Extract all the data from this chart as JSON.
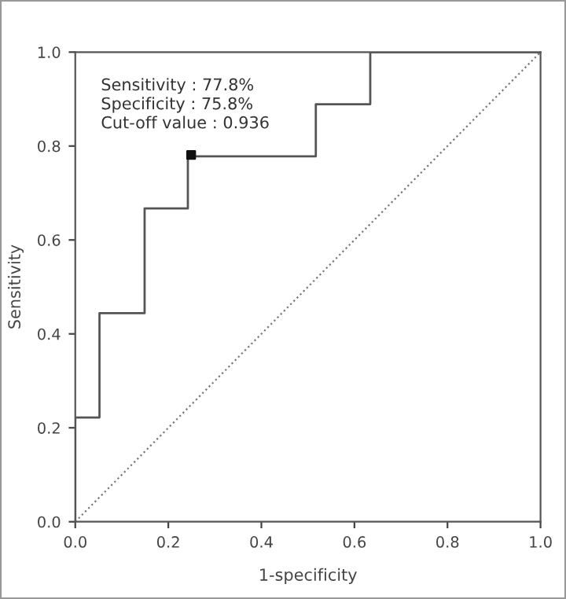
{
  "chart_data": {
    "type": "line",
    "xlabel": "1-specificity",
    "ylabel": "Sensitivity",
    "xlim": [
      0.0,
      1.0
    ],
    "ylim": [
      0.0,
      1.0
    ],
    "xticks": [
      {
        "value": 0,
        "label": "0.0"
      },
      0.2,
      0.4,
      0.6,
      0.8,
      {
        "value": 1,
        "label": "1.0"
      }
    ],
    "yticks": [
      {
        "value": 0,
        "label": "0.0"
      },
      0.2,
      0.4,
      0.6,
      0.8,
      {
        "value": 1,
        "label": "1.0"
      }
    ],
    "grid": false,
    "legend": false,
    "annotations": [
      "Sensitivity : 77.8%",
      "Specificity : 75.8%",
      "Cut-off value : 0.936"
    ],
    "series": [
      {
        "color": "#555555",
        "line_style": "solid",
        "x": [
          0,
          0,
          0.052,
          0.052,
          0.149,
          0.149,
          0.242,
          0.242,
          0.517,
          0.517,
          0.634,
          0.634,
          1.0
        ],
        "values": [
          0,
          0.222,
          0.222,
          0.444,
          0.444,
          0.667,
          0.667,
          0.778,
          0.778,
          0.889,
          0.889,
          1.0,
          1.0
        ]
      },
      {
        "color": "#777777",
        "line_style": "dotted",
        "x": [
          0,
          1
        ],
        "values": [
          0,
          1
        ]
      },
      {
        "type": "scatter",
        "color": "#111111",
        "marker": "square",
        "x": [
          0.249
        ],
        "values": [
          0.781
        ]
      }
    ]
  }
}
